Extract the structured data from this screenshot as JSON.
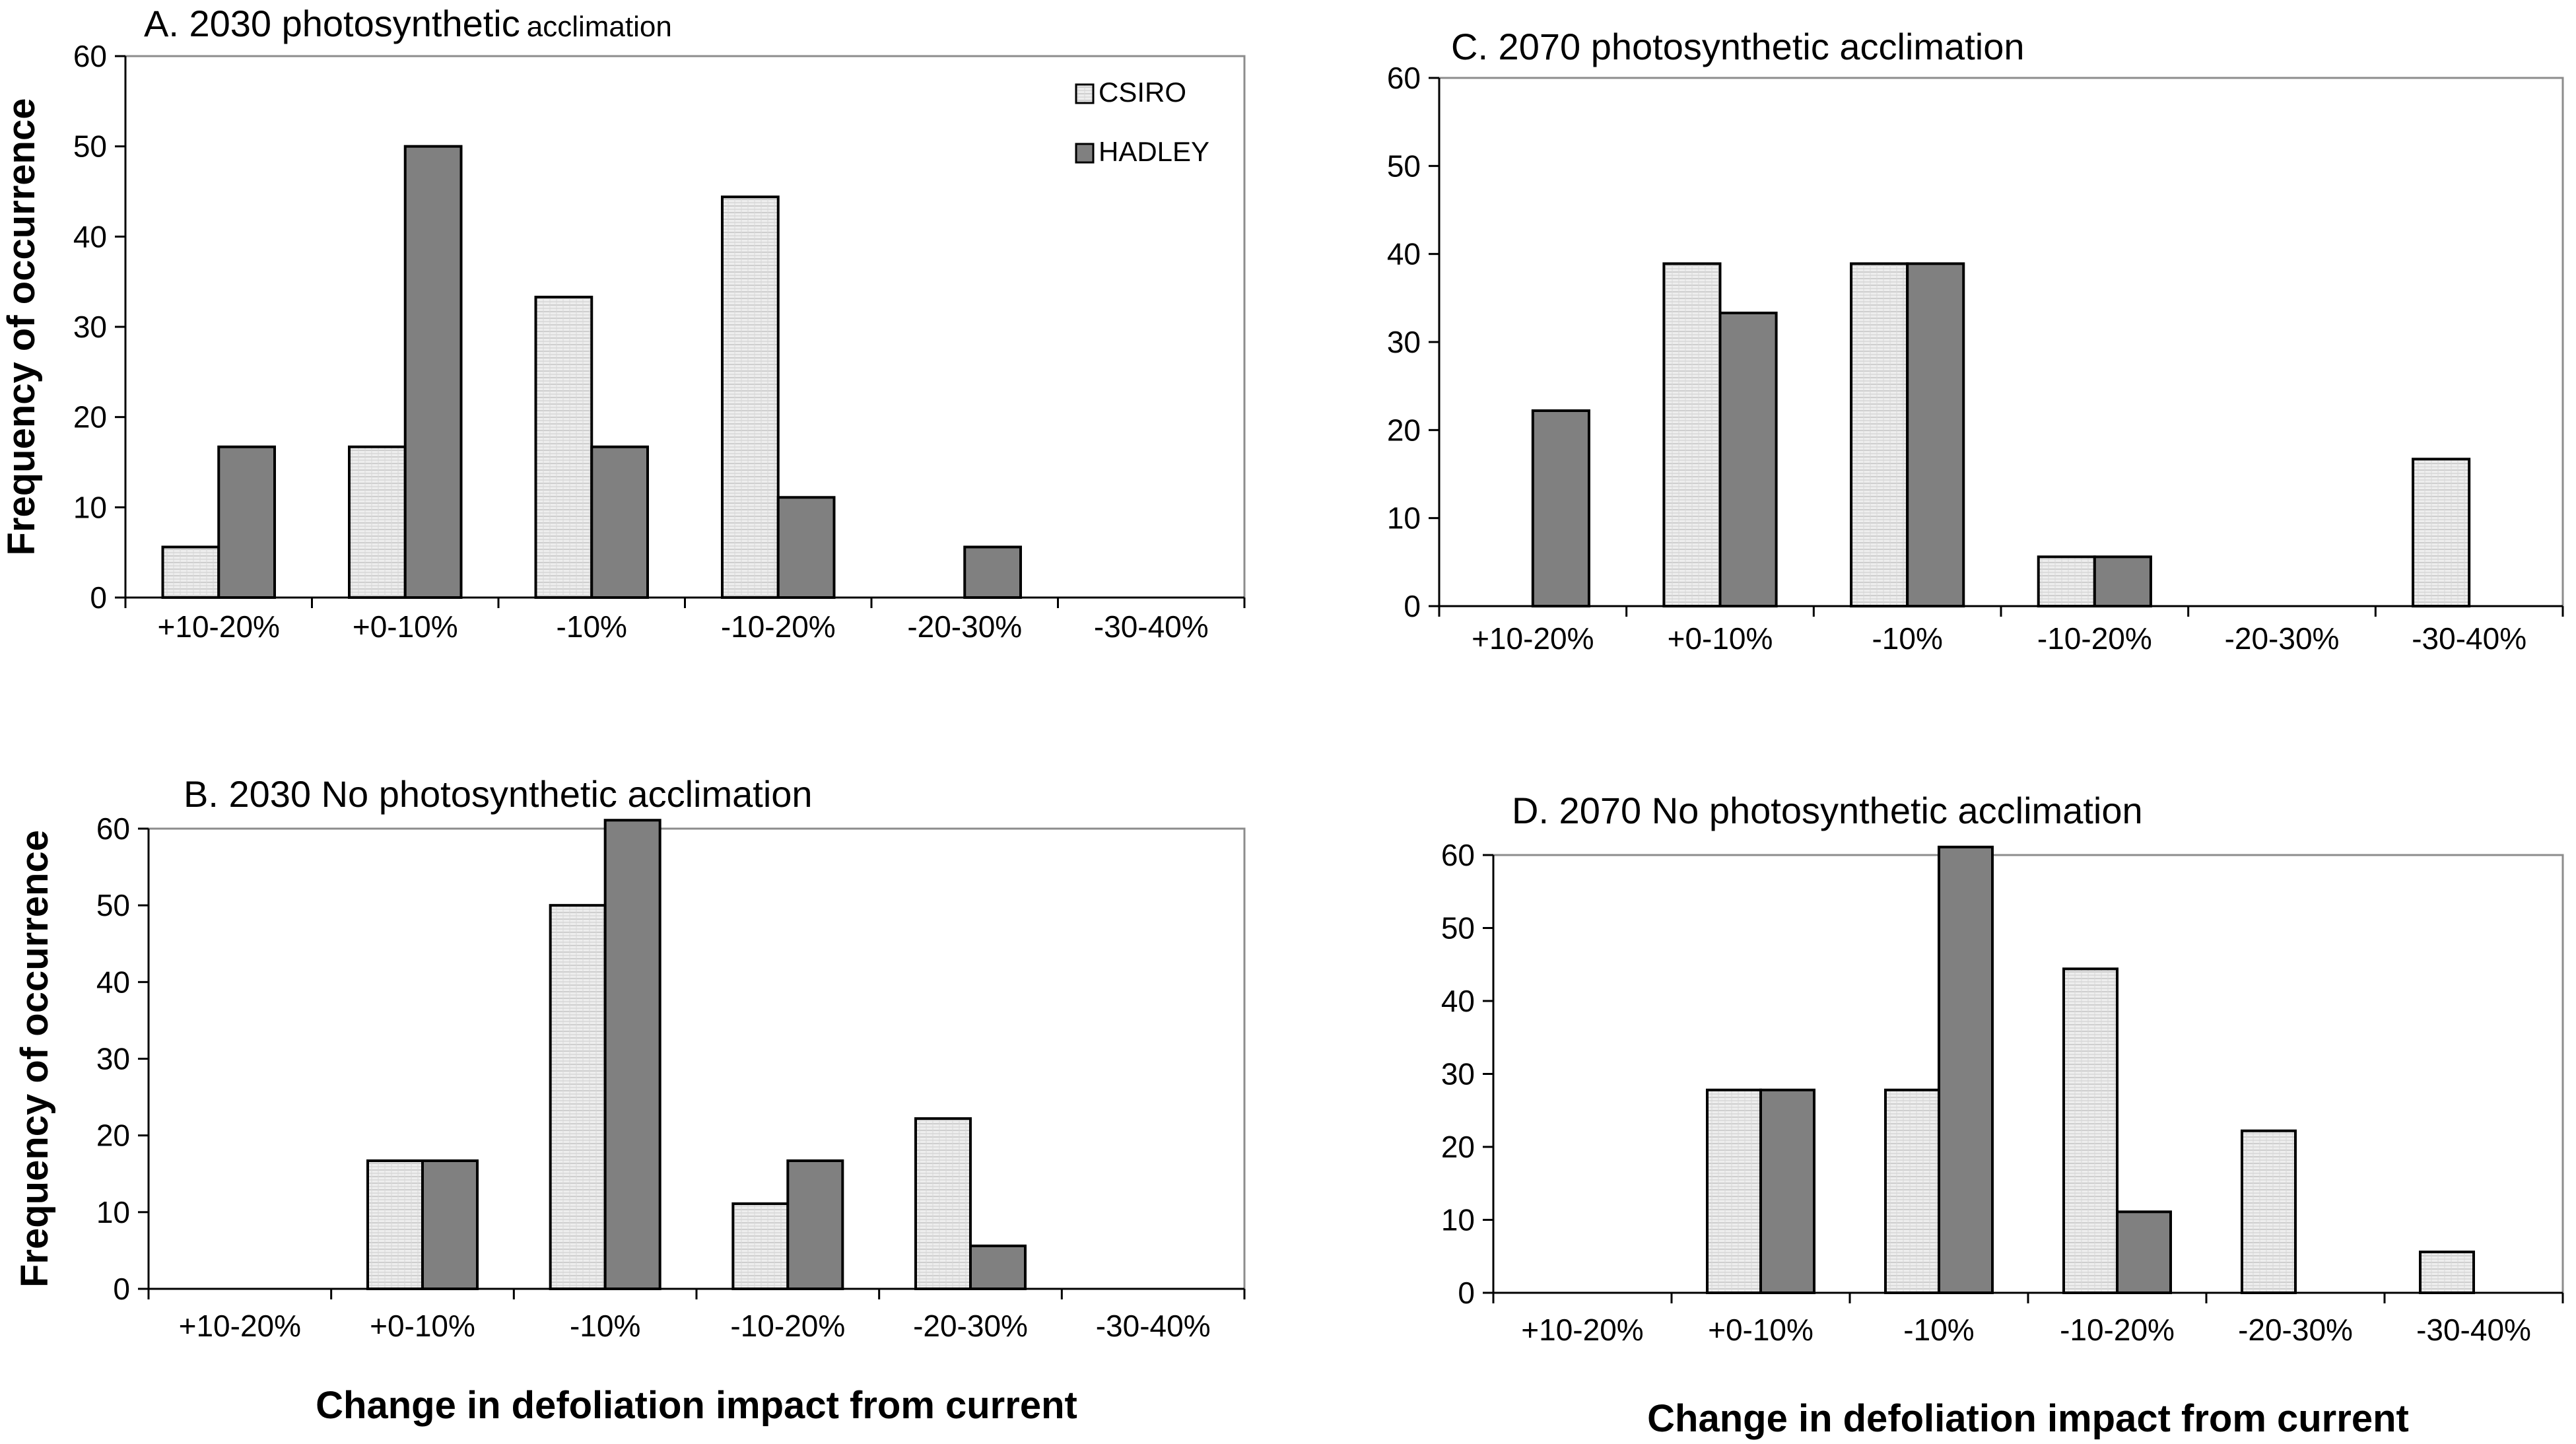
{
  "colors": {
    "csiro": "#eeeeee",
    "hadley": "#808080",
    "stroke": "#000000",
    "frame": "#8c8c8c"
  },
  "legend": {
    "csiro": "CSIRO",
    "hadley": "HADLEY"
  },
  "chart_data": [
    {
      "id": "A",
      "type": "bar",
      "title_main": "A. 2030  photosynthetic",
      "title_suffix": "acclimation",
      "ylabel": "Frequency of occurrence",
      "xlabel": "",
      "categories": [
        "+10-20%",
        "+0-10%",
        "-10%",
        "-10-20%",
        "-20-30%",
        "-30-40%"
      ],
      "ylim": [
        0,
        60
      ],
      "yticks": [
        0,
        10,
        20,
        30,
        40,
        50,
        60
      ],
      "legend": true,
      "series": [
        {
          "name": "CSIRO",
          "values": [
            5.6,
            16.7,
            33.3,
            44.4,
            0,
            0
          ]
        },
        {
          "name": "HADLEY",
          "values": [
            16.7,
            50,
            16.7,
            11.1,
            5.6,
            0
          ]
        }
      ]
    },
    {
      "id": "B",
      "type": "bar",
      "title_main": "B. 2030 No photosynthetic acclimation",
      "title_suffix": "",
      "ylabel": "Frequency of occurrence",
      "xlabel": "Change in defoliation impact from current",
      "categories": [
        "+10-20%",
        "+0-10%",
        "-10%",
        "-10-20%",
        "-20-30%",
        "-30-40%"
      ],
      "ylim": [
        0,
        60
      ],
      "yticks": [
        0,
        10,
        20,
        30,
        40,
        50,
        60
      ],
      "legend": false,
      "series": [
        {
          "name": "CSIRO",
          "values": [
            0,
            16.7,
            50,
            11.1,
            22.2,
            0
          ]
        },
        {
          "name": "HADLEY",
          "values": [
            0,
            16.7,
            61.1,
            16.7,
            5.6,
            0
          ]
        }
      ]
    },
    {
      "id": "C",
      "type": "bar",
      "title_main": "C. 2070  photosynthetic acclimation",
      "title_suffix": "",
      "ylabel": "",
      "xlabel": "",
      "categories": [
        "+10-20%",
        "+0-10%",
        "-10%",
        "-10-20%",
        "-20-30%",
        "-30-40%"
      ],
      "ylim": [
        0,
        60
      ],
      "yticks": [
        0,
        10,
        20,
        30,
        40,
        50,
        60
      ],
      "legend": false,
      "series": [
        {
          "name": "CSIRO",
          "values": [
            0,
            38.9,
            38.9,
            5.6,
            0,
            16.7
          ]
        },
        {
          "name": "HADLEY",
          "values": [
            22.2,
            33.3,
            38.9,
            5.6,
            0,
            0
          ]
        }
      ]
    },
    {
      "id": "D",
      "type": "bar",
      "title_main": "D. 2070 No photosynthetic acclimation",
      "title_suffix": "",
      "ylabel": "",
      "xlabel": "Change in defoliation impact from current",
      "categories": [
        "+10-20%",
        "+0-10%",
        "-10%",
        "-10-20%",
        "-20-30%",
        "-30-40%"
      ],
      "ylim": [
        0,
        60
      ],
      "yticks": [
        0,
        10,
        20,
        30,
        40,
        50,
        60
      ],
      "legend": false,
      "series": [
        {
          "name": "CSIRO",
          "values": [
            0,
            27.8,
            27.8,
            44.4,
            22.2,
            5.6
          ]
        },
        {
          "name": "HADLEY",
          "values": [
            0,
            27.8,
            61.1,
            11.1,
            0,
            0
          ]
        }
      ]
    }
  ]
}
